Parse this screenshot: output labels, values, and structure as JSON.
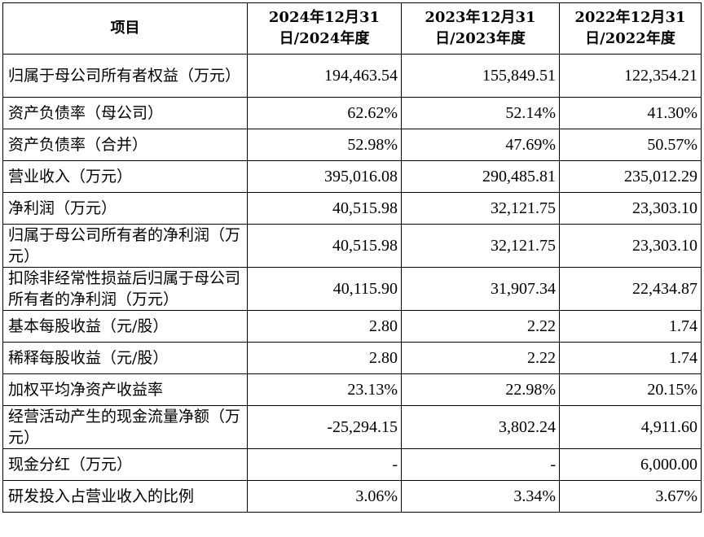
{
  "headers": [
    "项目",
    "2024年12月31日/2024年度",
    "2023年12月31日/2023年度",
    "2022年12月31日/2022年度"
  ],
  "rows": [
    {
      "label": "归属于母公司所有者权益（万元）",
      "values": [
        "194,463.54",
        "155,849.51",
        "122,354.21"
      ],
      "tall": true
    },
    {
      "label": "资产负债率（母公司）",
      "values": [
        "62.62%",
        "52.14%",
        "41.30%"
      ]
    },
    {
      "label": "资产负债率（合并）",
      "values": [
        "52.98%",
        "47.69%",
        "50.57%"
      ]
    },
    {
      "label": "营业收入（万元）",
      "values": [
        "395,016.08",
        "290,485.81",
        "235,012.29"
      ]
    },
    {
      "label": "净利润（万元）",
      "values": [
        "40,515.98",
        "32,121.75",
        "23,303.10"
      ]
    },
    {
      "label": "归属于母公司所有者的净利润（万元）",
      "values": [
        "40,515.98",
        "32,121.75",
        "23,303.10"
      ],
      "tall": true
    },
    {
      "label": "扣除非经常性损益后归属于母公司所有者的净利润（万元）",
      "values": [
        "40,115.90",
        "31,907.34",
        "22,434.87"
      ],
      "tall": true
    },
    {
      "label": "基本每股收益（元/股）",
      "values": [
        "2.80",
        "2.22",
        "1.74"
      ]
    },
    {
      "label": "稀释每股收益（元/股）",
      "values": [
        "2.80",
        "2.22",
        "1.74"
      ]
    },
    {
      "label": "加权平均净资产收益率",
      "values": [
        "23.13%",
        "22.98%",
        "20.15%"
      ]
    },
    {
      "label": "经营活动产生的现金流量净额（万元）",
      "values": [
        "-25,294.15",
        "3,802.24",
        "4,911.60"
      ],
      "tall": true
    },
    {
      "label": "现金分红（万元）",
      "values": [
        "-",
        "-",
        "6,000.00"
      ]
    },
    {
      "label": "研发投入占营业收入的比例",
      "values": [
        "3.06%",
        "3.34%",
        "3.67%"
      ]
    }
  ]
}
